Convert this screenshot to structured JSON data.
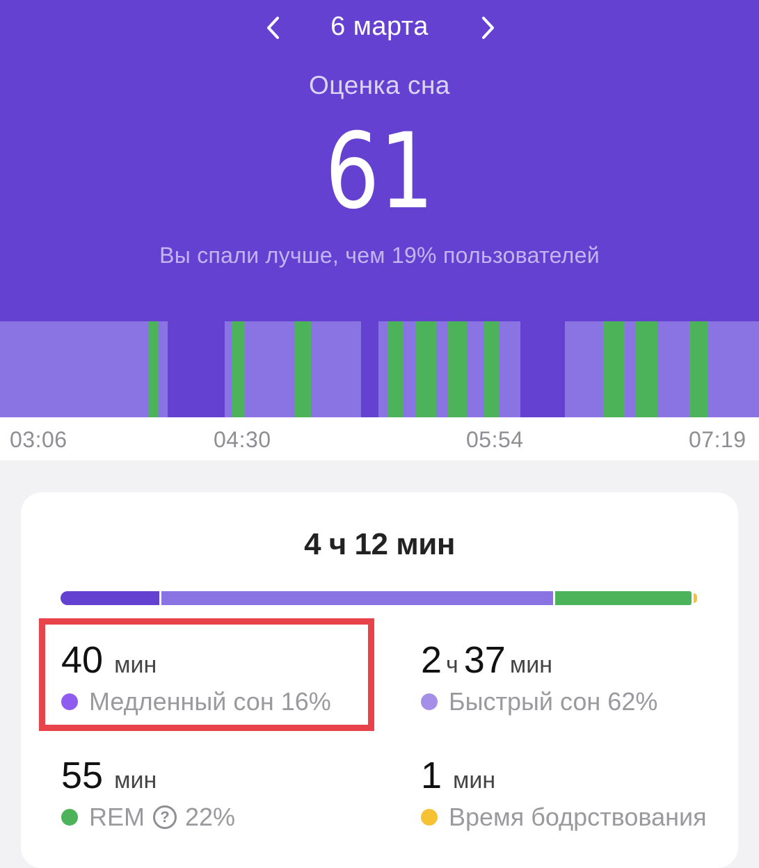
{
  "header": {
    "date": "6 марта",
    "score_title": "Оценка сна",
    "score": "61",
    "comparison": "Вы спали лучше, чем 19% пользователей"
  },
  "timeline": {
    "segments": [
      {
        "stage": "light",
        "start": 0.0,
        "end": 0.196
      },
      {
        "stage": "rem",
        "start": 0.196,
        "end": 0.209
      },
      {
        "stage": "light",
        "start": 0.209,
        "end": 0.221
      },
      {
        "stage": "deep",
        "start": 0.221,
        "end": 0.296
      },
      {
        "stage": "light",
        "start": 0.296,
        "end": 0.306
      },
      {
        "stage": "rem",
        "start": 0.306,
        "end": 0.323
      },
      {
        "stage": "light",
        "start": 0.323,
        "end": 0.389
      },
      {
        "stage": "rem",
        "start": 0.389,
        "end": 0.41
      },
      {
        "stage": "light",
        "start": 0.41,
        "end": 0.476
      },
      {
        "stage": "deep",
        "start": 0.476,
        "end": 0.499
      },
      {
        "stage": "light",
        "start": 0.499,
        "end": 0.511
      },
      {
        "stage": "rem",
        "start": 0.511,
        "end": 0.532
      },
      {
        "stage": "light",
        "start": 0.532,
        "end": 0.547
      },
      {
        "stage": "rem",
        "start": 0.547,
        "end": 0.575
      },
      {
        "stage": "light",
        "start": 0.575,
        "end": 0.59
      },
      {
        "stage": "rem",
        "start": 0.59,
        "end": 0.615
      },
      {
        "stage": "light",
        "start": 0.615,
        "end": 0.637
      },
      {
        "stage": "rem",
        "start": 0.637,
        "end": 0.658
      },
      {
        "stage": "light",
        "start": 0.658,
        "end": 0.686
      },
      {
        "stage": "deep",
        "start": 0.686,
        "end": 0.744
      },
      {
        "stage": "light",
        "start": 0.744,
        "end": 0.795
      },
      {
        "stage": "rem",
        "start": 0.795,
        "end": 0.823
      },
      {
        "stage": "light",
        "start": 0.823,
        "end": 0.838
      },
      {
        "stage": "rem",
        "start": 0.838,
        "end": 0.866
      },
      {
        "stage": "light",
        "start": 0.866,
        "end": 0.908
      },
      {
        "stage": "rem",
        "start": 0.908,
        "end": 0.933
      },
      {
        "stage": "light",
        "start": 0.933,
        "end": 1.0
      }
    ],
    "ticks": [
      "03:06",
      "04:30",
      "05:54",
      "07:19"
    ]
  },
  "summary": {
    "total": "4 ч 12 мин",
    "deep": {
      "value": "40",
      "unit": "мин",
      "label": "Медленный сон 16%",
      "color": "#8f5cf0"
    },
    "light": {
      "hours": "2",
      "hours_unit": "ч",
      "minutes": "37",
      "minutes_unit": "мин",
      "label": "Быстрый сон 62%",
      "color": "#a58ee8"
    },
    "rem": {
      "value": "55",
      "unit": "мин",
      "label": "REM",
      "percent": "22%",
      "help_glyph": "?",
      "color": "#4cb35a"
    },
    "awake": {
      "value": "1",
      "unit": "мин",
      "label": "Время бодрствования",
      "color": "#f6c234"
    }
  },
  "colors": {
    "header_bg": "#6441d0",
    "deep": "#6441d0",
    "light": "#8a73e2",
    "rem": "#4cb35a",
    "awake": "#f6c234",
    "highlight": "#e8434b"
  }
}
